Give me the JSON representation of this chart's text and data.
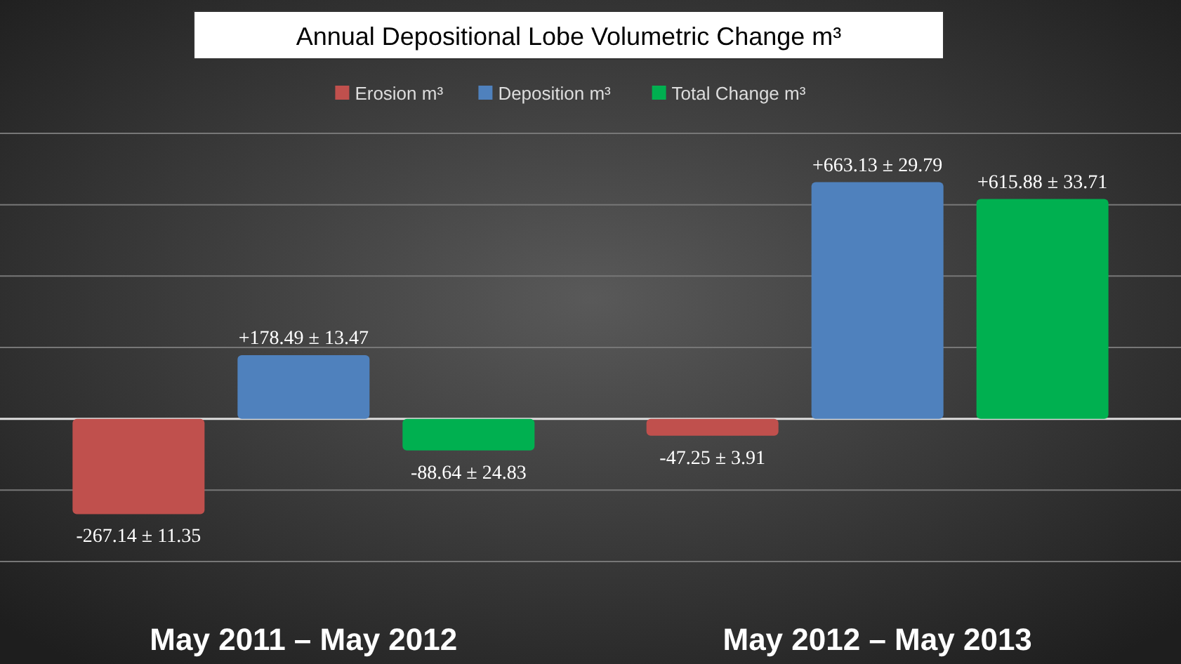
{
  "chart_data": {
    "type": "bar",
    "title": "Annual  Depositional Lobe Volumetric Change m³",
    "categories": [
      "May 2011 – May 2012",
      "May 2012 – May 2013"
    ],
    "series": [
      {
        "name": "Erosion m³",
        "color": "#c0504d",
        "values": [
          -267.14,
          -47.25
        ],
        "value_labels": [
          "-267.14 ± 11.35",
          "-47.25 ± 3.91"
        ]
      },
      {
        "name": "Deposition m³",
        "color": "#4f81bd",
        "values": [
          178.49,
          663.13
        ],
        "value_labels": [
          "+178.49 ± 13.47",
          "+663.13 ± 29.79"
        ]
      },
      {
        "name": "Total Change m³",
        "color": "#00b050",
        "values": [
          -88.64,
          615.88
        ],
        "value_labels": [
          "-88.64 ± 24.83",
          "+615.88 ± 33.71"
        ]
      }
    ],
    "ylim": [
      -400,
      800
    ],
    "yticks": [
      {
        "value": -400,
        "label": null
      },
      {
        "value": -200,
        "label": null
      },
      {
        "value": 0,
        "label": null
      },
      {
        "value": 200,
        "label": null
      },
      {
        "value": 400,
        "label": null
      },
      {
        "value": 600,
        "label": null
      },
      {
        "value": 800,
        "label": null
      }
    ],
    "tick_labels": "x",
    "grid": "y",
    "legend": "top"
  }
}
